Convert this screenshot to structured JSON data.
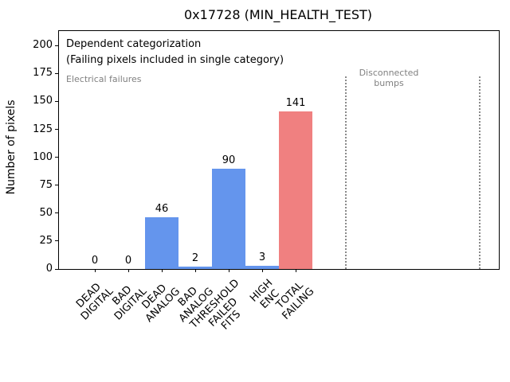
{
  "chart_data": {
    "type": "bar",
    "title": "0x17728 (MIN_HEALTH_TEST)",
    "xlabel": "",
    "ylabel": "Number of pixels",
    "categories": [
      "DEAD\nDIGITAL",
      "BAD\nDIGITAL",
      "DEAD\nANALOG",
      "BAD\nANALOG",
      "THRESHOLD\nFAILED\nFITS",
      "HIGH\nENC",
      "TOTAL\nFAILING"
    ],
    "values": [
      0,
      0,
      46,
      2,
      90,
      3,
      141
    ],
    "bar_colors": [
      "#6495ed",
      "#6495ed",
      "#6495ed",
      "#6495ed",
      "#6495ed",
      "#6495ed",
      "#f08080"
    ],
    "yticks": [
      0,
      25,
      50,
      75,
      100,
      125,
      150,
      175,
      200
    ],
    "ylim": [
      0,
      213
    ],
    "grid": false,
    "legend": null,
    "annotations": {
      "dependent": "Dependent categorization",
      "failing_note": "(Failing pixels included in single category)",
      "electrical": "Electrical failures",
      "disconnected": "Disconnected\nbumps"
    },
    "region_dividers_x": [
      7.5,
      11.5
    ],
    "colors": {
      "bar_blue": "#6495ed",
      "bar_red": "#f08080",
      "annotation_gray": "#808080",
      "divider_gray": "#8a8a8a",
      "text_black": "#000000",
      "background": "#ffffff"
    }
  }
}
